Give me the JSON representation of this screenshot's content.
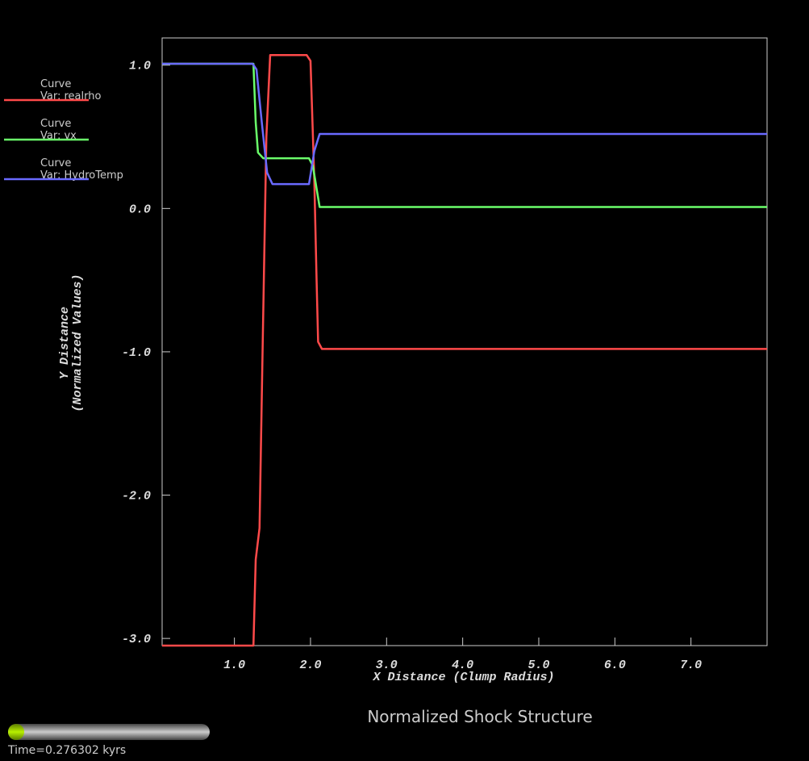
{
  "chart_data": {
    "type": "line",
    "title": "Normalized Shock Structure",
    "x_label": "X Distance (Clump Radius)",
    "y_label": [
      "Y Distance",
      "(Normalized Values)"
    ],
    "legend_title": "Curve",
    "time_label": "Time=0.276302 kyrs",
    "xlim": [
      0.05,
      8.0
    ],
    "ylim": [
      -3.05,
      1.19
    ],
    "xticks": [
      {
        "value": 1,
        "label": "1.0"
      },
      {
        "value": 2,
        "label": "2.0"
      },
      {
        "value": 3,
        "label": "3.0"
      },
      {
        "value": 4,
        "label": "4.0"
      },
      {
        "value": 5,
        "label": "5.0"
      },
      {
        "value": 6,
        "label": "6.0"
      },
      {
        "value": 7,
        "label": "7.0"
      }
    ],
    "yticks": [
      {
        "value": 1,
        "label": "1.0"
      },
      {
        "value": 0,
        "label": "0.0"
      },
      {
        "value": -1,
        "label": "-1.0"
      },
      {
        "value": -2,
        "label": "-2.0"
      },
      {
        "value": -3,
        "label": "-3.0"
      }
    ],
    "series": [
      {
        "name": "Var: realrho",
        "color": "#ff4a4a",
        "x": [
          0.05,
          1.25,
          1.28,
          1.33,
          1.37,
          1.42,
          1.47,
          1.95,
          2.0,
          2.05,
          2.08,
          2.1,
          2.15,
          8.0
        ],
        "values": [
          -3.05,
          -3.05,
          -2.45,
          -2.23,
          -1.0,
          0.5,
          1.07,
          1.07,
          1.03,
          0.2,
          -0.5,
          -0.93,
          -0.98,
          -0.98
        ]
      },
      {
        "name": "Var: vx",
        "color": "#6aff6a",
        "x": [
          0.05,
          1.25,
          1.28,
          1.31,
          1.38,
          1.98,
          2.03,
          2.12,
          8.0
        ],
        "values": [
          1.01,
          1.01,
          0.6,
          0.39,
          0.35,
          0.35,
          0.3,
          0.01,
          0.01
        ]
      },
      {
        "name": "Var: HydroTemp",
        "color": "#6a6aff",
        "x": [
          0.05,
          1.24,
          1.29,
          1.36,
          1.43,
          1.5,
          1.98,
          2.05,
          2.12,
          8.0
        ],
        "values": [
          1.01,
          1.01,
          0.97,
          0.6,
          0.25,
          0.17,
          0.17,
          0.4,
          0.52,
          0.52
        ]
      }
    ]
  }
}
